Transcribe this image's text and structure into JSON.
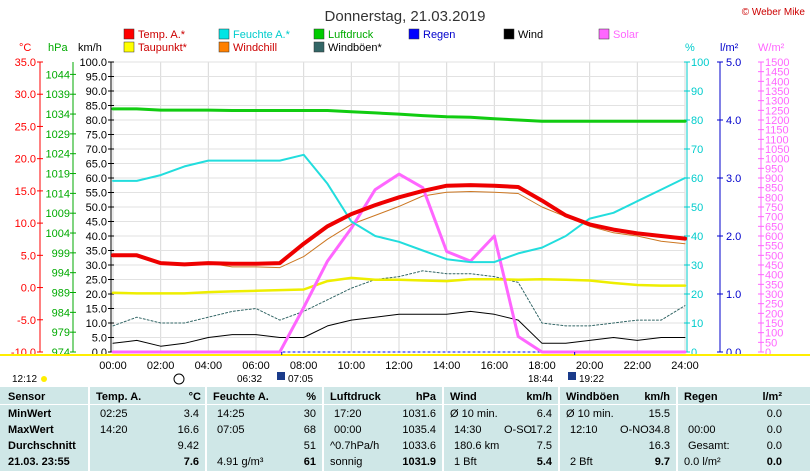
{
  "title": "Donnerstag, 21.03.2019",
  "credit": "© Weber Mike",
  "legend": [
    {
      "label": "Temp. A.*",
      "color": "#ff0000"
    },
    {
      "label": "Feuchte A.*",
      "color": "#00e5e5"
    },
    {
      "label": "Luftdruck",
      "color": "#00cc00"
    },
    {
      "label": "Regen",
      "color": "#0000ff"
    },
    {
      "label": "Wind",
      "color": "#000000"
    },
    {
      "label": "Solar",
      "color": "#ff66ff"
    },
    {
      "label": "Taupunkt*",
      "color": "#ffff00"
    },
    {
      "label": "Windchill",
      "color": "#ff8000"
    },
    {
      "label": "Windböen*",
      "color": "#336666"
    }
  ],
  "axis_units": {
    "temp": "°C",
    "press": "hPa",
    "wind": "km/h",
    "hum": "%",
    "rain": "l/m²",
    "solar": "W/m²"
  },
  "axis_ticks": {
    "temp": [
      "35.0",
      "30.0",
      "25.0",
      "20.0",
      "15.0",
      "10.0",
      "5.0",
      "0.0",
      "-5.0",
      "-10.0"
    ],
    "press": [
      "1044",
      "1039",
      "1034",
      "1029",
      "1024",
      "1019",
      "1014",
      "1009",
      "1004",
      "999",
      "994",
      "989",
      "984",
      "979",
      "974"
    ],
    "wind": [
      "100.0",
      "95.0",
      "90.0",
      "85.0",
      "80.0",
      "75.0",
      "70.0",
      "65.0",
      "60.0",
      "55.0",
      "50.0",
      "45.0",
      "40.0",
      "35.0",
      "30.0",
      "25.0",
      "20.0",
      "15.0",
      "10.0",
      "5.0",
      "0.0"
    ],
    "hum": [
      "100",
      "90",
      "80",
      "70",
      "60",
      "50",
      "40",
      "30",
      "20",
      "10",
      "0"
    ],
    "rain": [
      "5.0",
      "4.0",
      "3.0",
      "2.0",
      "1.0",
      "0.0"
    ],
    "solar": [
      "1500",
      "1450",
      "1400",
      "1350",
      "1300",
      "1250",
      "1200",
      "1150",
      "1100",
      "1050",
      "1000",
      "950",
      "900",
      "850",
      "800",
      "750",
      "700",
      "650",
      "600",
      "550",
      "500",
      "450",
      "400",
      "350",
      "300",
      "250",
      "200",
      "150",
      "100",
      "50",
      "0"
    ],
    "time": [
      "00:00",
      "02:00",
      "04:00",
      "06:00",
      "08:00",
      "10:00",
      "12:00",
      "14:00",
      "16:00",
      "18:00",
      "20:00",
      "22:00",
      "24:00"
    ]
  },
  "sun_labels": {
    "left": "12:12",
    "sunrise": "06:32",
    "dawn": "07:05",
    "sunset": "18:44",
    "dusk": "19:22"
  },
  "chart_data": {
    "type": "line",
    "x_unit": "hour",
    "x": [
      0,
      1,
      2,
      3,
      4,
      5,
      6,
      7,
      8,
      9,
      10,
      11,
      12,
      13,
      14,
      15,
      16,
      17,
      18,
      19,
      20,
      21,
      22,
      23,
      24
    ],
    "series": [
      {
        "name": "Temp. A.*",
        "axis": "temp",
        "values": [
          5.0,
          5.0,
          3.8,
          3.6,
          3.8,
          3.7,
          3.7,
          3.8,
          6.8,
          9.5,
          11.4,
          12.8,
          14.0,
          15.0,
          15.8,
          15.9,
          15.8,
          15.6,
          13.5,
          11.2,
          9.8,
          9.0,
          8.4,
          8.0,
          7.6
        ]
      },
      {
        "name": "Feuchte A.*",
        "axis": "hum",
        "values": [
          59,
          59,
          61,
          64,
          66,
          66,
          66,
          66,
          68,
          58,
          45,
          40,
          38,
          35,
          32,
          31,
          31,
          34,
          36,
          40,
          46,
          48,
          52,
          56,
          60
        ]
      },
      {
        "name": "Luftdruck",
        "axis": "press",
        "values": [
          1035.3,
          1035.3,
          1035.0,
          1035.0,
          1035.0,
          1034.9,
          1034.9,
          1034.9,
          1034.9,
          1034.9,
          1034.6,
          1034.3,
          1034.0,
          1033.6,
          1033.3,
          1033.2,
          1032.8,
          1032.5,
          1032.2,
          1032.2,
          1032.2,
          1032.2,
          1032.2,
          1032.2,
          1032.2
        ]
      },
      {
        "name": "Taupunkt*",
        "axis": "temp",
        "values": [
          -0.8,
          -0.9,
          -0.9,
          -0.9,
          -0.7,
          -0.6,
          -0.5,
          -0.4,
          -0.3,
          1.0,
          1.5,
          1.2,
          1.2,
          1.1,
          1.0,
          1.3,
          1.3,
          1.2,
          1.3,
          1.2,
          1.1,
          0.7,
          0.4,
          0.3,
          0.3
        ]
      },
      {
        "name": "Windchill",
        "axis": "temp",
        "values": [
          5.0,
          5.0,
          3.8,
          3.6,
          3.8,
          3.2,
          3.2,
          3.1,
          4.8,
          7.5,
          9.8,
          11.2,
          12.6,
          14.2,
          14.8,
          14.9,
          14.8,
          14.6,
          12.5,
          11.0,
          9.5,
          8.5,
          8.0,
          7.2,
          6.8
        ]
      },
      {
        "name": "Wind",
        "axis": "wind",
        "values": [
          3,
          4,
          2,
          3,
          5,
          6,
          6,
          5,
          5,
          9,
          11,
          12,
          13,
          13,
          13,
          14,
          13,
          11,
          3,
          3,
          4,
          5,
          4,
          5,
          5
        ]
      },
      {
        "name": "Windböen*",
        "axis": "wind",
        "values": [
          9,
          12,
          10,
          10,
          12,
          14,
          15,
          11,
          14,
          18,
          22,
          25,
          26,
          28,
          27,
          27,
          26,
          24,
          10,
          9,
          9,
          10,
          11,
          11,
          16
        ]
      },
      {
        "name": "Solar",
        "axis": "solar",
        "values": [
          0,
          0,
          0,
          0,
          0,
          0,
          0,
          0,
          230,
          470,
          640,
          840,
          920,
          850,
          520,
          470,
          600,
          80,
          0,
          0,
          0,
          0,
          0,
          0,
          0
        ]
      },
      {
        "name": "Regen",
        "axis": "rain",
        "values": [
          0,
          0,
          0,
          0,
          0,
          0,
          0,
          0,
          0,
          0,
          0,
          0,
          0,
          0,
          0,
          0,
          0,
          0,
          0,
          0,
          0,
          0,
          0,
          0,
          0
        ]
      }
    ]
  },
  "table": {
    "sensor": {
      "header": "Sensor",
      "rows": [
        "MinWert",
        "MaxWert",
        "Durchschnitt",
        "21.03. 23:55"
      ]
    },
    "temp": {
      "header": "Temp. A.",
      "unit": "°C",
      "rows": [
        [
          "02:25",
          "3.4"
        ],
        [
          "14:20",
          "16.6"
        ],
        [
          "",
          "9.42"
        ],
        [
          "",
          "7.6"
        ]
      ]
    },
    "hum": {
      "header": "Feuchte A.",
      "unit": "%",
      "rows": [
        [
          "14:25",
          "30"
        ],
        [
          "07:05",
          "68"
        ],
        [
          "",
          "51"
        ],
        [
          "4.91 g/m³",
          "61"
        ]
      ]
    },
    "press": {
      "header": "Luftdruck",
      "unit": "hPa",
      "rows": [
        [
          "17:20",
          "1031.6"
        ],
        [
          "00:00",
          "1035.4"
        ],
        [
          "^0.7hPa/h",
          "1033.6"
        ],
        [
          "sonnig",
          "1031.9"
        ]
      ]
    },
    "wind": {
      "header": "Wind",
      "unit": "km/h",
      "rows": [
        [
          "Ø 10 min.",
          "",
          "6.4"
        ],
        [
          "14:30",
          "O-SO",
          "17.2"
        ],
        [
          "180.6 km",
          "",
          "7.5"
        ],
        [
          "1 Bft",
          "",
          "5.4"
        ]
      ]
    },
    "gust": {
      "header": "Windböen",
      "unit": "km/h",
      "rows": [
        [
          "Ø 10 min.",
          "",
          "15.5"
        ],
        [
          "12:10",
          "O-NO",
          "34.8"
        ],
        [
          "",
          "",
          "16.3"
        ],
        [
          "2 Bft",
          "",
          "9.7"
        ]
      ]
    },
    "rain": {
      "header": "Regen",
      "unit": "l/m²",
      "rows": [
        [
          "",
          "0.0"
        ],
        [
          "00:00",
          "0.0"
        ],
        [
          "Gesamt:",
          "0.0"
        ],
        [
          "0.0 l/m²",
          "0.0"
        ]
      ]
    }
  }
}
